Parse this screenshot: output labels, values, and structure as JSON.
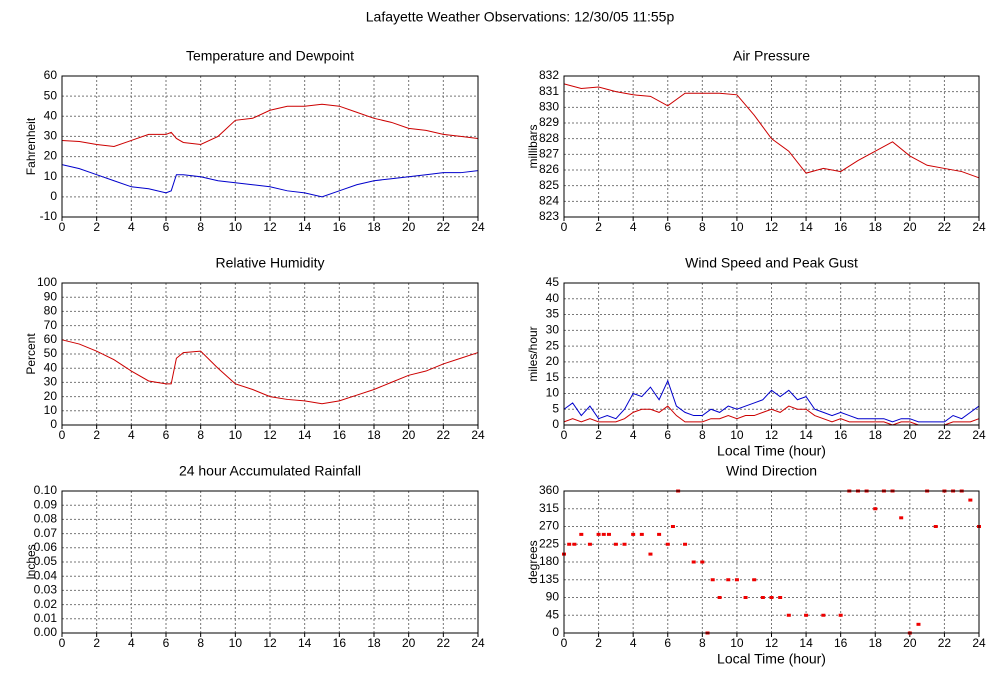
{
  "title": "Lafayette Weather Observations: 12/30/05 11:55p",
  "chart_data": [
    {
      "type": "line",
      "title": "Temperature and Dewpoint",
      "ylabel": "Fahrenheit",
      "x": [
        0,
        1,
        2,
        3,
        4,
        5,
        6,
        6.3,
        6.6,
        7,
        8,
        9,
        10,
        11,
        12,
        13,
        14,
        15,
        16,
        17,
        18,
        19,
        20,
        21,
        22,
        23,
        24
      ],
      "series": [
        {
          "color": "#cc0000",
          "values": [
            28,
            27.5,
            26,
            25,
            28,
            31,
            31,
            32,
            29,
            27,
            26,
            30,
            38,
            39,
            43,
            45,
            45,
            46,
            45,
            42,
            39,
            37,
            34,
            33,
            31,
            30,
            29
          ]
        },
        {
          "color": "#0000cc",
          "values": [
            16,
            14,
            11,
            8,
            5,
            4,
            2,
            3,
            11,
            11,
            10,
            8,
            7,
            6,
            5,
            3,
            2,
            0,
            3,
            6,
            8,
            9,
            10,
            11,
            12,
            12,
            13
          ]
        }
      ],
      "xlim": [
        0,
        24
      ],
      "xticks": [
        0,
        2,
        4,
        6,
        8,
        10,
        12,
        14,
        16,
        18,
        20,
        22,
        24
      ],
      "ylim": [
        -10,
        60
      ],
      "yticks": [
        -10,
        0,
        10,
        20,
        30,
        40,
        50,
        60
      ],
      "grid": true
    },
    {
      "type": "line",
      "title": "Air Pressure",
      "ylabel": "millibars",
      "x": [
        0,
        1,
        2,
        3,
        4,
        5,
        6,
        7,
        8,
        9,
        10,
        11,
        12,
        13,
        14,
        15,
        16,
        17,
        18,
        19,
        20,
        21,
        22,
        23,
        24
      ],
      "series": [
        {
          "color": "#cc0000",
          "values": [
            831.5,
            831.2,
            831.3,
            831,
            830.8,
            830.7,
            830.1,
            830.9,
            830.9,
            830.9,
            830.8,
            829.5,
            828,
            827.2,
            825.8,
            826.1,
            825.9,
            826.6,
            827.2,
            827.8,
            826.9,
            826.3,
            826.1,
            825.9,
            825.5
          ]
        }
      ],
      "xlim": [
        0,
        24
      ],
      "xticks": [
        0,
        2,
        4,
        6,
        8,
        10,
        12,
        14,
        16,
        18,
        20,
        22,
        24
      ],
      "ylim": [
        823,
        832
      ],
      "yticks": [
        823,
        824,
        825,
        826,
        827,
        828,
        829,
        830,
        831,
        832
      ],
      "grid": true
    },
    {
      "type": "line",
      "title": "Relative Humidity",
      "ylabel": "Percent",
      "x": [
        0,
        1,
        2,
        3,
        4,
        5,
        6,
        6.3,
        6.6,
        7,
        8,
        9,
        10,
        11,
        12,
        13,
        14,
        15,
        16,
        17,
        18,
        19,
        20,
        21,
        22,
        23,
        24
      ],
      "series": [
        {
          "color": "#cc0000",
          "values": [
            60,
            57,
            52,
            46,
            38,
            31,
            29,
            29,
            47,
            51,
            52,
            40,
            29,
            25,
            20,
            18,
            17,
            15,
            17,
            21,
            25,
            30,
            35,
            38,
            43,
            47,
            51
          ]
        }
      ],
      "xlim": [
        0,
        24
      ],
      "xticks": [
        0,
        2,
        4,
        6,
        8,
        10,
        12,
        14,
        16,
        18,
        20,
        22,
        24
      ],
      "ylim": [
        0,
        100
      ],
      "yticks": [
        0,
        10,
        20,
        30,
        40,
        50,
        60,
        70,
        80,
        90,
        100
      ],
      "grid": true
    },
    {
      "type": "line",
      "title": "Wind Speed and Peak Gust",
      "ylabel": "miles/hour",
      "xlabel": "Local Time (hour)",
      "x": [
        0,
        0.5,
        1,
        1.5,
        2,
        2.5,
        3,
        3.5,
        4,
        4.5,
        5,
        5.5,
        6,
        6.5,
        7,
        7.5,
        8,
        8.5,
        9,
        9.5,
        10,
        10.5,
        11,
        11.5,
        12,
        12.5,
        13,
        13.5,
        14,
        14.5,
        15,
        15.5,
        16,
        16.5,
        17,
        17.5,
        18,
        18.5,
        19,
        19.5,
        20,
        20.5,
        21,
        21.5,
        22,
        22.5,
        23,
        23.5,
        24
      ],
      "series": [
        {
          "color": "#0000cc",
          "values": [
            5,
            7,
            3,
            6,
            2,
            3,
            2,
            5,
            10,
            9,
            12,
            8,
            14,
            6,
            4,
            3,
            3,
            5,
            4,
            6,
            5,
            6,
            7,
            8,
            11,
            9,
            11,
            8,
            9,
            5,
            4,
            3,
            4,
            3,
            2,
            2,
            2,
            2,
            1,
            2,
            2,
            1,
            1,
            1,
            1,
            3,
            2,
            4,
            6
          ]
        },
        {
          "color": "#cc0000",
          "values": [
            1,
            2,
            1,
            2,
            1,
            1,
            1,
            2,
            4,
            5,
            5,
            4,
            6,
            3,
            1,
            1,
            1,
            2,
            2,
            3,
            2,
            3,
            3,
            4,
            5,
            4,
            6,
            5,
            5,
            3,
            2,
            1,
            2,
            1,
            1,
            1,
            1,
            1,
            0,
            1,
            1,
            0,
            0,
            0,
            0,
            1,
            1,
            1,
            2
          ]
        }
      ],
      "xlim": [
        0,
        24
      ],
      "xticks": [
        0,
        2,
        4,
        6,
        8,
        10,
        12,
        14,
        16,
        18,
        20,
        22,
        24
      ],
      "ylim": [
        0,
        45
      ],
      "yticks": [
        0,
        5,
        10,
        15,
        20,
        25,
        30,
        35,
        40,
        45
      ],
      "grid": true
    },
    {
      "type": "line",
      "title": "24 hour Accumulated Rainfall",
      "ylabel": "Inches",
      "x": [
        0,
        24
      ],
      "series": [
        {
          "color": "#cc0000",
          "values": [
            0,
            0
          ]
        }
      ],
      "xlim": [
        0,
        24
      ],
      "xticks": [
        0,
        2,
        4,
        6,
        8,
        10,
        12,
        14,
        16,
        18,
        20,
        22,
        24
      ],
      "ylim": [
        0,
        0.1
      ],
      "yticks": [
        {
          "value": 0,
          "label": "0.00"
        },
        {
          "value": 0.01,
          "label": "0.01"
        },
        {
          "value": 0.02,
          "label": "0.02"
        },
        {
          "value": 0.03,
          "label": "0.03"
        },
        {
          "value": 0.04,
          "label": "0.04"
        },
        {
          "value": 0.05,
          "label": "0.05"
        },
        {
          "value": 0.06,
          "label": "0.06"
        },
        {
          "value": 0.07,
          "label": "0.07"
        },
        {
          "value": 0.08,
          "label": "0.08"
        },
        {
          "value": 0.09,
          "label": "0.09"
        },
        {
          "value": 0.1,
          "label": "0.10"
        }
      ],
      "grid": true
    },
    {
      "type": "scatter",
      "title": "Wind Direction",
      "ylabel": "degrees",
      "xlabel": "Local Time (hour)",
      "color": "#ee0000",
      "x": [
        0,
        0.3,
        0.6,
        1,
        1.5,
        2,
        2.3,
        2.6,
        3,
        3.5,
        4,
        4.5,
        5,
        5.5,
        6,
        6.3,
        6.6,
        7,
        7.5,
        8,
        8.3,
        8.6,
        9,
        9.5,
        10,
        10.5,
        11,
        11.5,
        12,
        12.5,
        13,
        14,
        15,
        16,
        16.5,
        17,
        17.5,
        18,
        18.5,
        19,
        19.5,
        20,
        20.5,
        21,
        21.5,
        22,
        22.5,
        23,
        23.5,
        24
      ],
      "values": [
        200,
        225,
        225,
        250,
        225,
        250,
        250,
        250,
        225,
        225,
        250,
        250,
        200,
        250,
        225,
        270,
        360,
        225,
        180,
        180,
        0,
        135,
        90,
        135,
        135,
        90,
        135,
        90,
        90,
        90,
        45,
        45,
        45,
        45,
        360,
        360,
        360,
        315,
        360,
        360,
        292,
        0,
        22,
        360,
        270,
        360,
        360,
        360,
        337,
        270
      ],
      "xlim": [
        0,
        24
      ],
      "xticks": [
        0,
        2,
        4,
        6,
        8,
        10,
        12,
        14,
        16,
        18,
        20,
        22,
        24
      ],
      "ylim": [
        0,
        360
      ],
      "yticks": [
        0,
        45,
        90,
        135,
        180,
        225,
        270,
        315,
        360
      ],
      "grid": true
    }
  ]
}
